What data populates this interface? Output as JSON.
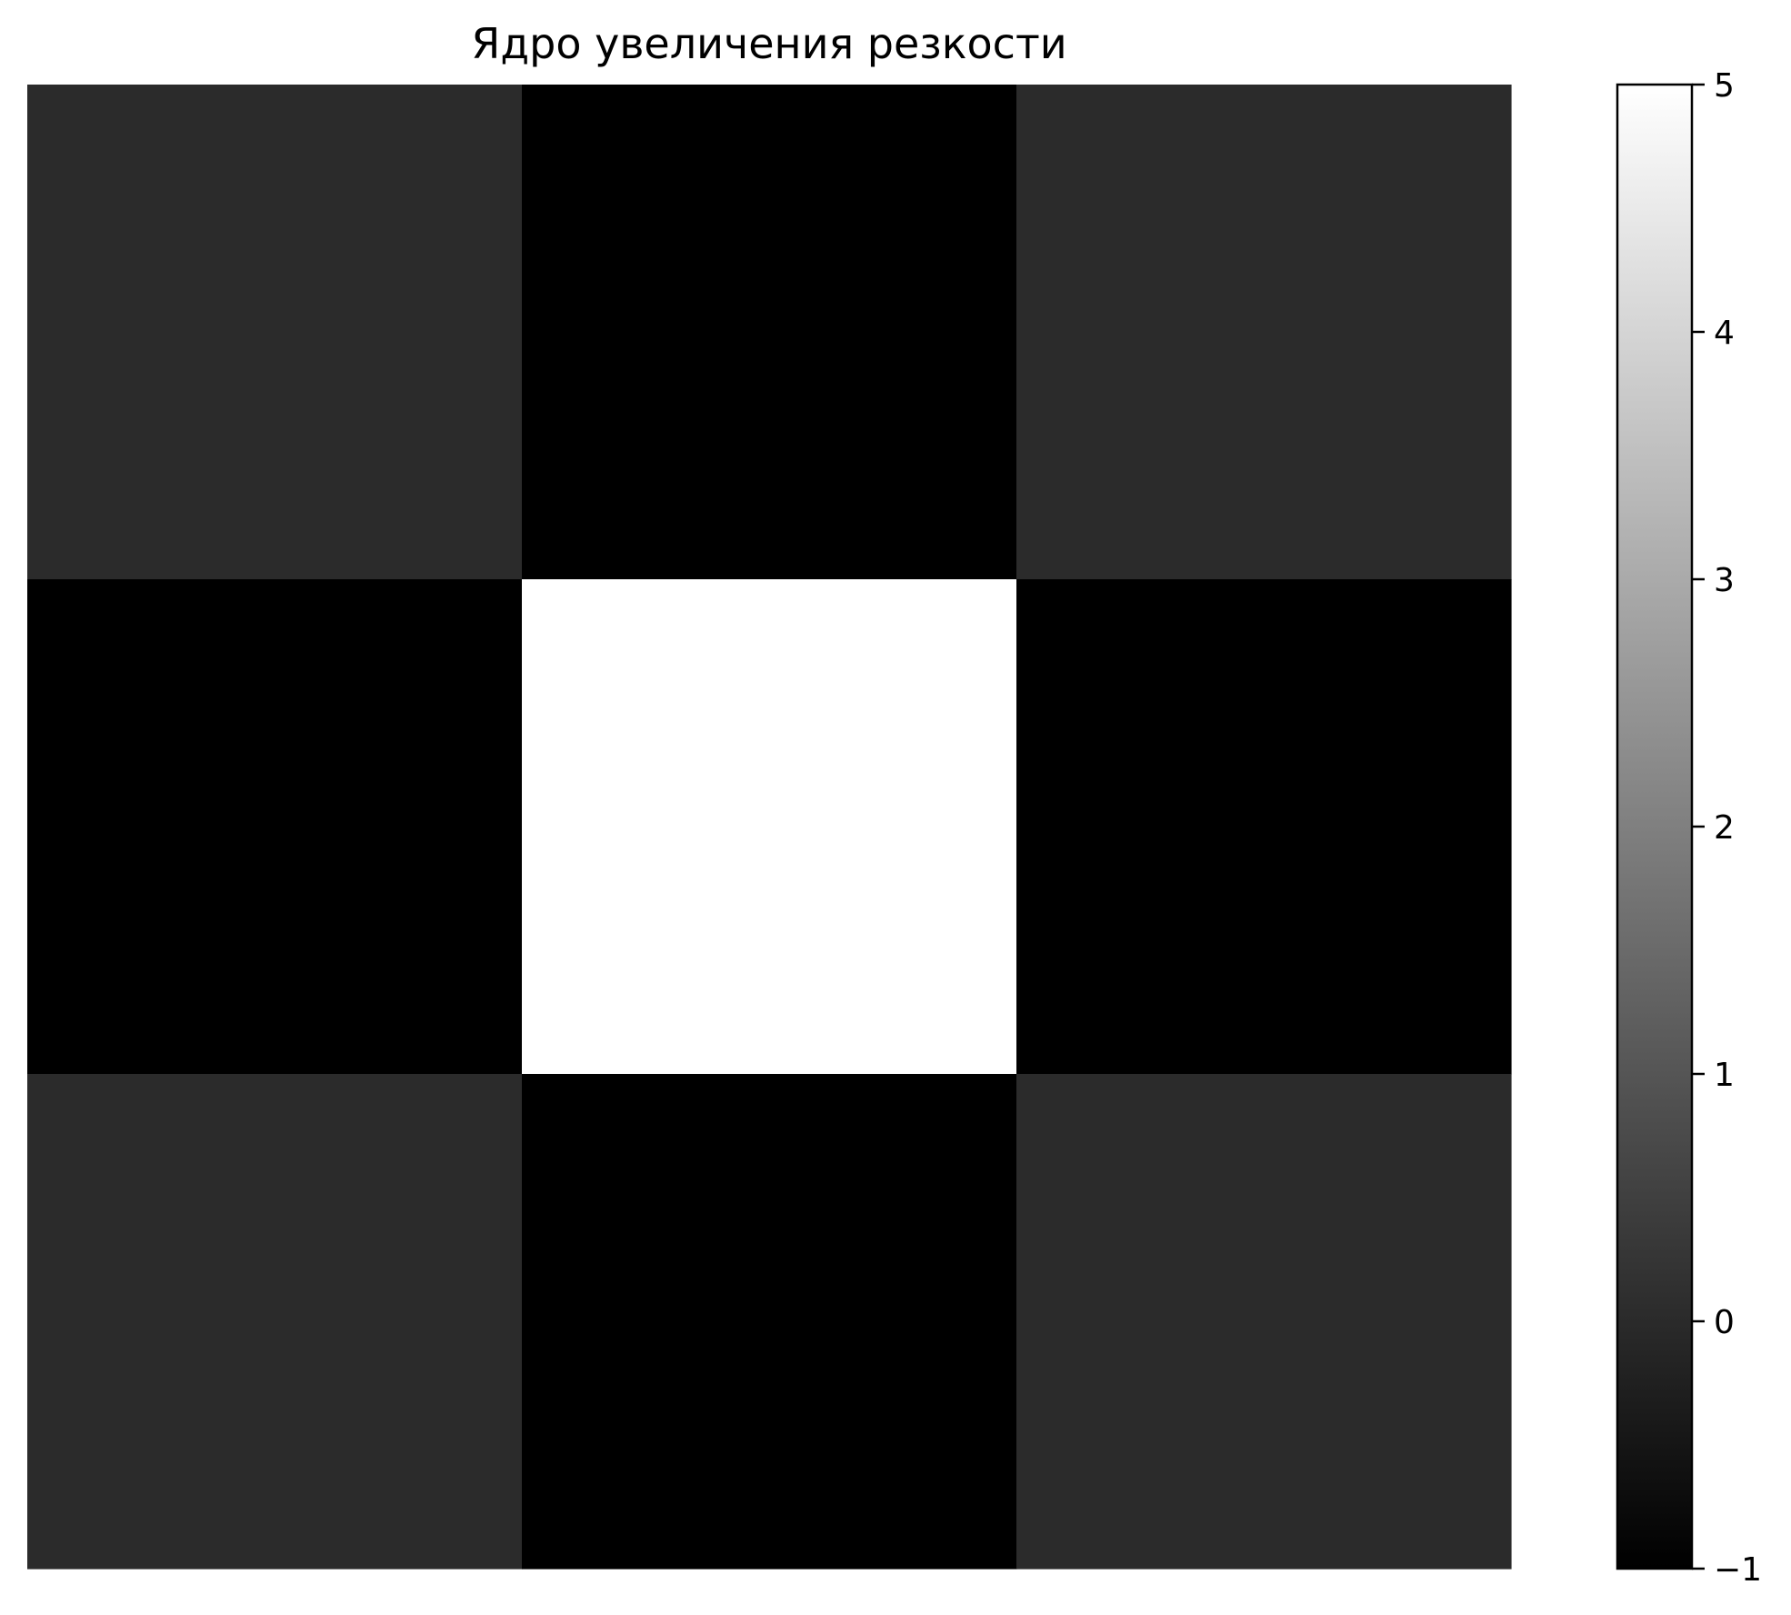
{
  "chart_data": {
    "type": "heatmap",
    "title": "Ядро увеличения резкости",
    "xlabel": "",
    "ylabel": "",
    "rows": 3,
    "cols": 3,
    "values": [
      [
        0,
        -1,
        0
      ],
      [
        -1,
        5,
        -1
      ],
      [
        0,
        -1,
        0
      ]
    ],
    "colormap": "gray",
    "colormap_low_color": "#000000",
    "colormap_high_color": "#ffffff",
    "vmin": -1,
    "vmax": 5,
    "axes_visible": false,
    "grid": false,
    "colorbar": {
      "position": "right",
      "ticks": [
        -1,
        0,
        1,
        2,
        3,
        4,
        5
      ],
      "tick_labels": [
        "−1",
        "0",
        "1",
        "2",
        "3",
        "4",
        "5"
      ]
    }
  }
}
